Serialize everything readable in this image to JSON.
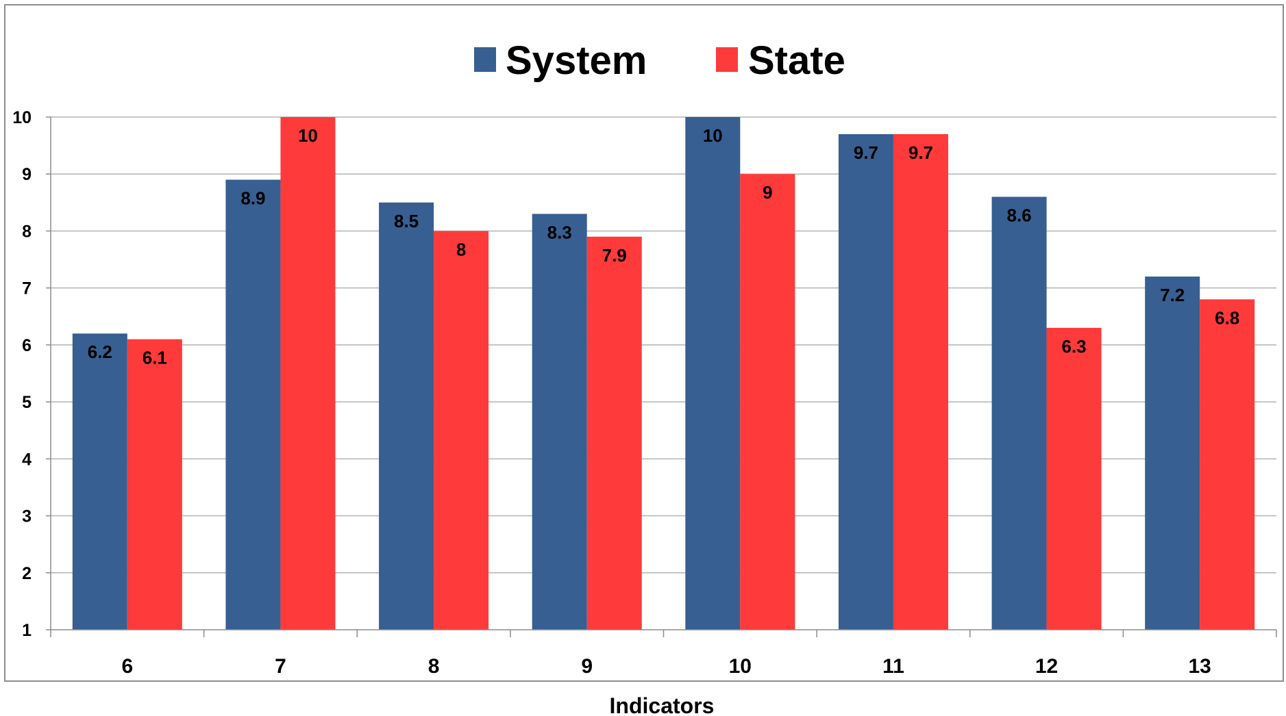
{
  "chart_data": {
    "type": "bar",
    "title": "",
    "xlabel": "Indicators",
    "ylabel": "",
    "categories": [
      "6",
      "7",
      "8",
      "9",
      "10",
      "11",
      "12",
      "13"
    ],
    "series": [
      {
        "name": "System",
        "color": "#375F91",
        "values": [
          6.2,
          8.9,
          8.5,
          8.3,
          10,
          9.7,
          8.6,
          7.2
        ]
      },
      {
        "name": "State",
        "color": "#FF3A3A",
        "values": [
          6.1,
          10,
          8,
          7.9,
          9,
          9.7,
          6.3,
          6.8
        ]
      }
    ],
    "ylim": [
      1,
      10
    ],
    "yticks": [
      1,
      2,
      3,
      4,
      5,
      6,
      7,
      8,
      9,
      10
    ],
    "grid": true,
    "legend": "top-center",
    "data_labels": true
  }
}
